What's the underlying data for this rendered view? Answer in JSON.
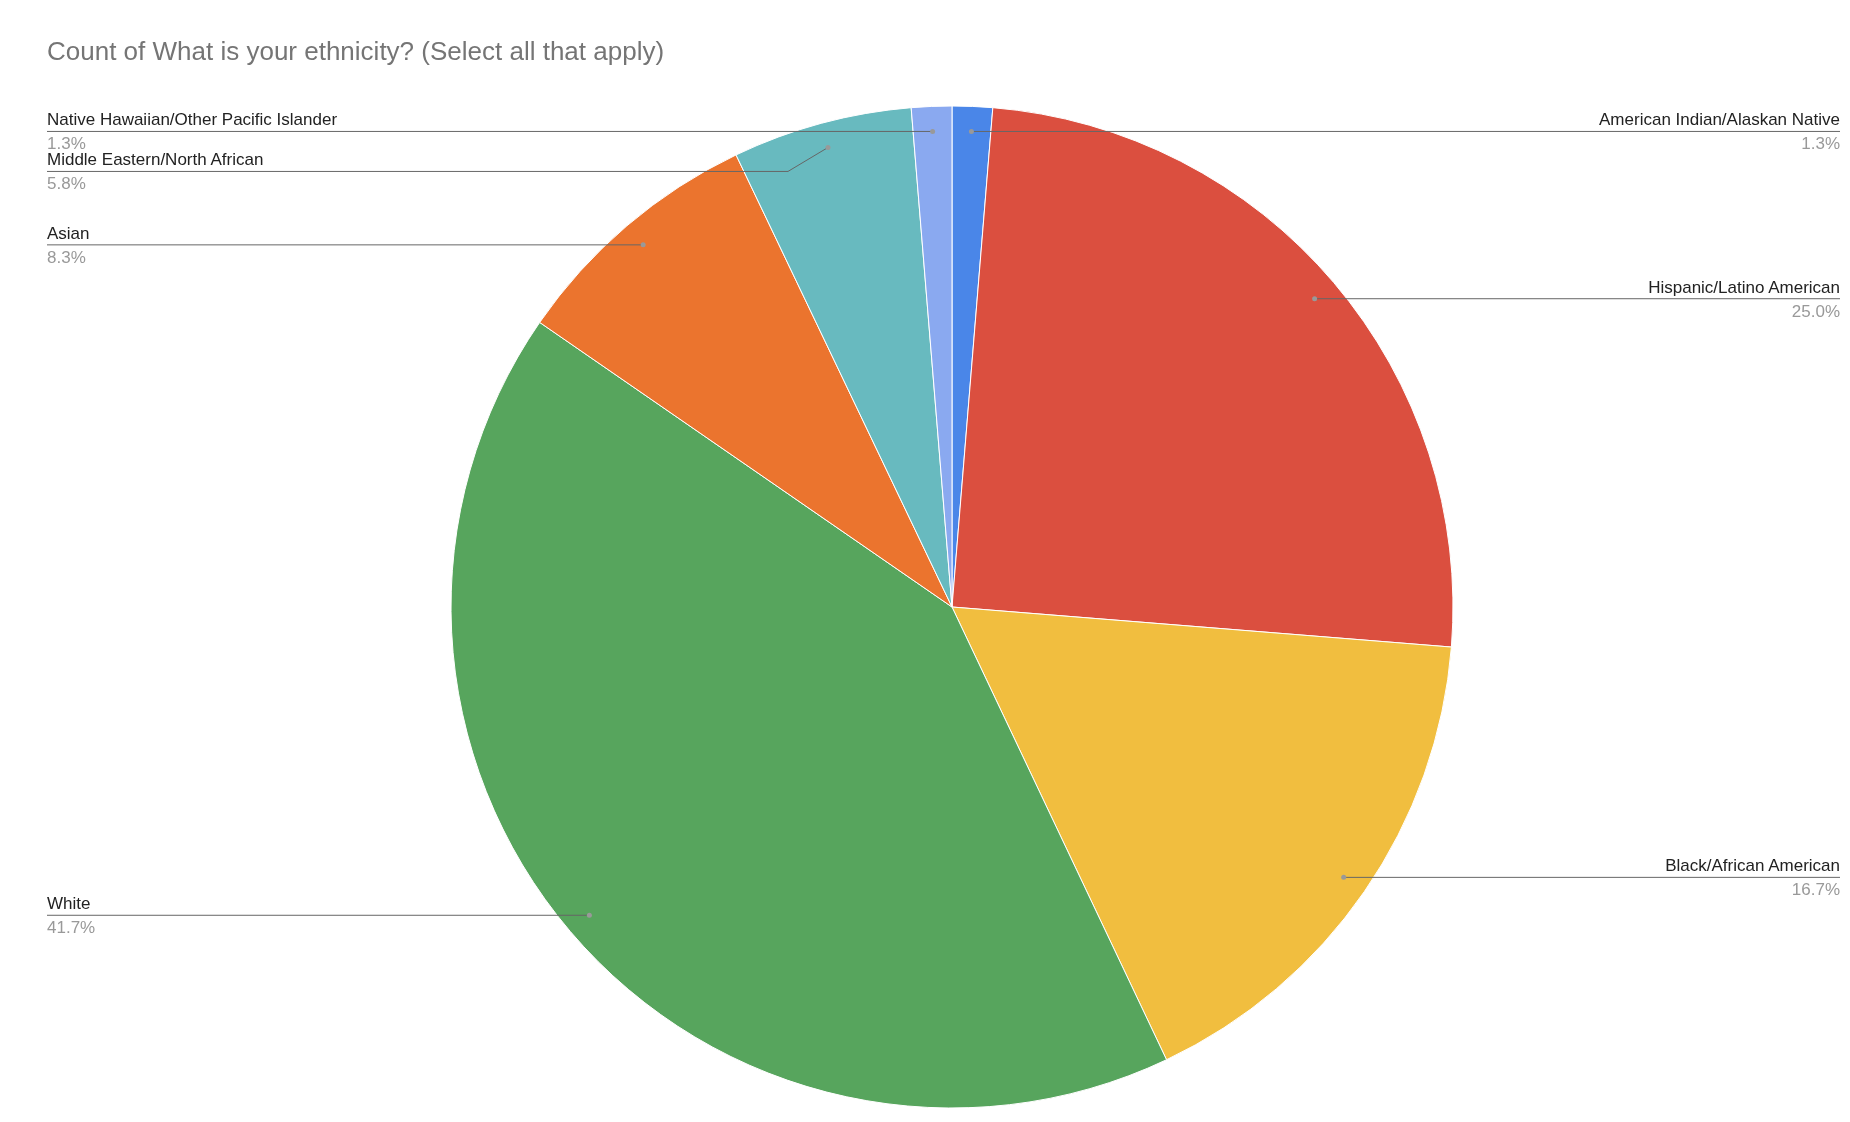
{
  "chart_data": {
    "type": "pie",
    "title": "Count of What is your ethnicity? (Select all that apply)",
    "categories": [
      "American Indian/Alaskan Native",
      "Hispanic/Latino American",
      "Black/African American",
      "White",
      "Asian",
      "Middle Eastern/North African",
      "Native Hawaiian/Other Pacific Islander"
    ],
    "values": [
      1.3,
      25.0,
      16.7,
      41.7,
      8.3,
      5.8,
      1.3
    ],
    "colors": [
      "#4a86e8",
      "#db4f3f",
      "#f1be3f",
      "#57a55d",
      "#eb742e",
      "#68babf",
      "#8aa9f0"
    ],
    "value_labels": [
      "1.3%",
      "25.0%",
      "16.7%",
      "41.7%",
      "8.3%",
      "5.8%",
      "1.3%"
    ],
    "legend": false
  }
}
